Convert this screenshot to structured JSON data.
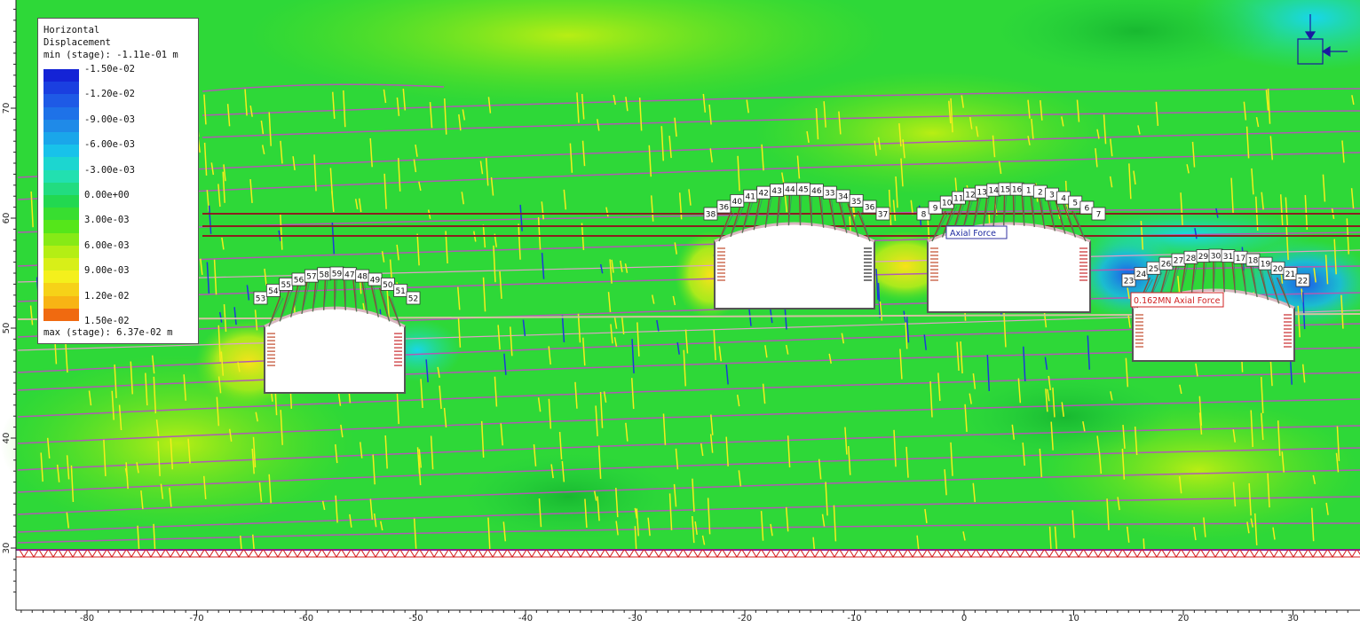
{
  "legend": {
    "title_line1": "Horizontal",
    "title_line2": "Displacement",
    "min_text": "min (stage): -1.11e-01 m",
    "max_text": "max (stage): 6.37e-02 m",
    "levels": [
      {
        "label": "-1.50e-02",
        "color": "#1423d6"
      },
      {
        "label": "-1.20e-02",
        "color": "#1e5ae6"
      },
      {
        "label": "-9.00e-03",
        "color": "#1f8ae8"
      },
      {
        "label": "-6.00e-03",
        "color": "#18c2ea"
      },
      {
        "label": "-3.00e-03",
        "color": "#22e0b0"
      },
      {
        "label": "0.00e+00",
        "color": "#22d850"
      },
      {
        "label": "3.00e-03",
        "color": "#55e61a"
      },
      {
        "label": "6.00e-03",
        "color": "#b4ee14"
      },
      {
        "label": "9.00e-03",
        "color": "#f4f01c"
      },
      {
        "label": "1.20e-02",
        "color": "#f8b414"
      },
      {
        "label": "1.50e-02",
        "color": "#f02828"
      }
    ],
    "extra_colors": [
      "#f06a10",
      "#eb1818"
    ]
  },
  "axes": {
    "x_ticks": [
      "-80",
      "-70",
      "-60",
      "-50",
      "-40",
      "-30",
      "-20",
      "-10",
      "0",
      "10",
      "20",
      "30"
    ],
    "y_ticks": [
      "70",
      "60",
      "50",
      "40",
      "30"
    ]
  },
  "annotations": {
    "axial_force_1": "0.162MN Axial Force",
    "axial_force_2": "Axial Force"
  },
  "tunnel_1_labels": [
    "53",
    "54",
    "55",
    "56",
    "57",
    "58",
    "59",
    "47",
    "48",
    "49",
    "50",
    "51",
    "52"
  ],
  "tunnel_2_labels": [
    "38",
    "36",
    "40",
    "41",
    "42",
    "43",
    "44",
    "45",
    "46",
    "33",
    "34",
    "35",
    "36",
    "37"
  ],
  "tunnel_3_labels": [
    "8",
    "9",
    "10",
    "11",
    "12",
    "13",
    "14",
    "15",
    "16",
    "1",
    "2",
    "3",
    "4",
    "5",
    "6",
    "7"
  ],
  "tunnel_4_labels": [
    "23",
    "24",
    "25",
    "26",
    "27",
    "28",
    "29",
    "30",
    "31",
    "17",
    "18",
    "19",
    "20",
    "21",
    "22"
  ]
}
